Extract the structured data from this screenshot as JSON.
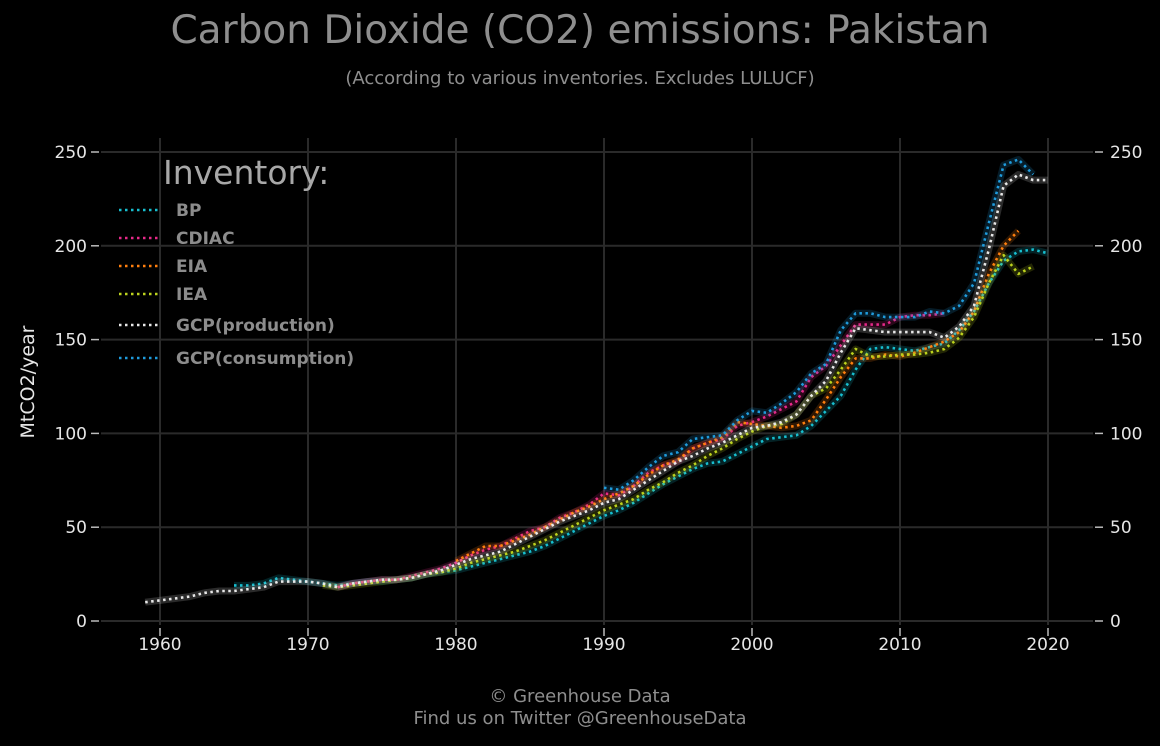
{
  "title": "Carbon Dioxide (CO2) emissions: Pakistan",
  "subtitle": "(According to various inventories. Excludes LULUCF)",
  "footer": {
    "line1": "© Greenhouse Data",
    "line2": "Find us on Twitter @GreenhouseData"
  },
  "chart_data": {
    "type": "line",
    "title": "Carbon Dioxide (CO2) emissions: Pakistan",
    "subtitle": "(According to various inventories. Excludes LULUCF)",
    "xlabel": "",
    "ylabel": "MtCO2/year",
    "xlim": [
      1956,
      2023
    ],
    "ylim": [
      0,
      260
    ],
    "x_ticks": [
      1960,
      1970,
      1980,
      1990,
      2000,
      2010,
      2020
    ],
    "y_ticks": [
      0,
      50,
      100,
      150,
      200,
      250
    ],
    "grid": true,
    "legend_title": "Inventory:",
    "legend_position": "top-left",
    "series": [
      {
        "name": "BP",
        "color": "#17becf",
        "x": [
          1965,
          1966,
          1967,
          1968,
          1969,
          1970,
          1971,
          1972,
          1973,
          1974,
          1975,
          1976,
          1977,
          1978,
          1979,
          1980,
          1981,
          1982,
          1983,
          1984,
          1985,
          1986,
          1987,
          1988,
          1989,
          1990,
          1991,
          1992,
          1993,
          1994,
          1995,
          1996,
          1997,
          1998,
          1999,
          2000,
          2001,
          2002,
          2003,
          2004,
          2005,
          2006,
          2007,
          2008,
          2009,
          2010,
          2011,
          2012,
          2013,
          2014,
          2015,
          2016,
          2017,
          2018,
          2019,
          2020
        ],
        "y": [
          19,
          19,
          20,
          23,
          22,
          21,
          20,
          19,
          20,
          21,
          21,
          22,
          23,
          25,
          26,
          27,
          29,
          31,
          33,
          35,
          37,
          40,
          44,
          48,
          52,
          56,
          59,
          63,
          68,
          73,
          77,
          81,
          84,
          85,
          89,
          93,
          97,
          98,
          99,
          104,
          112,
          120,
          134,
          145,
          146,
          145,
          144,
          146,
          148,
          155,
          165,
          180,
          192,
          197,
          198,
          196
        ]
      },
      {
        "name": "CDIAC",
        "color": "#e7298a",
        "x": [
          1972,
          1973,
          1974,
          1975,
          1976,
          1977,
          1978,
          1979,
          1980,
          1981,
          1982,
          1983,
          1984,
          1985,
          1986,
          1987,
          1988,
          1989,
          1990,
          1991,
          1992,
          1993,
          1994,
          1995,
          1996,
          1997,
          1998,
          1999,
          2000,
          2001,
          2002,
          2003,
          2004,
          2005,
          2006,
          2007,
          2008,
          2009,
          2010,
          2011,
          2012,
          2013
        ],
        "y": [
          18,
          20,
          21,
          22,
          22,
          24,
          26,
          28,
          31,
          35,
          38,
          40,
          44,
          48,
          50,
          55,
          58,
          62,
          68,
          67,
          72,
          79,
          83,
          85,
          92,
          95,
          97,
          104,
          106,
          109,
          113,
          117,
          130,
          136,
          147,
          158,
          158,
          158,
          162,
          163,
          163,
          164
        ]
      },
      {
        "name": "EIA",
        "color": "#ff7f0e",
        "x": [
          1980,
          1981,
          1982,
          1983,
          1984,
          1985,
          1986,
          1987,
          1988,
          1989,
          1990,
          1991,
          1992,
          1993,
          1994,
          1995,
          1996,
          1997,
          1998,
          1999,
          2000,
          2001,
          2002,
          2003,
          2004,
          2005,
          2006,
          2007,
          2008,
          2009,
          2010,
          2011,
          2012,
          2013,
          2014,
          2015,
          2016,
          2017,
          2018
        ],
        "y": [
          32,
          36,
          40,
          40,
          43,
          46,
          50,
          54,
          58,
          61,
          65,
          68,
          72,
          78,
          83,
          86,
          92,
          95,
          98,
          106,
          105,
          104,
          103,
          104,
          107,
          118,
          130,
          140,
          140,
          142,
          141,
          143,
          146,
          149,
          154,
          165,
          185,
          200,
          208
        ]
      },
      {
        "name": "IEA",
        "color": "#bcd21e",
        "x": [
          1971,
          1972,
          1973,
          1974,
          1975,
          1976,
          1977,
          1978,
          1979,
          1980,
          1981,
          1982,
          1983,
          1984,
          1985,
          1986,
          1987,
          1988,
          1989,
          1990,
          1991,
          1992,
          1993,
          1994,
          1995,
          1996,
          1997,
          1998,
          1999,
          2000,
          2001,
          2002,
          2003,
          2004,
          2005,
          2006,
          2007,
          2008,
          2009,
          2010,
          2011,
          2012,
          2013,
          2014,
          2015,
          2016,
          2017,
          2018,
          2019
        ],
        "y": [
          19,
          18,
          19,
          20,
          21,
          22,
          23,
          25,
          26,
          28,
          31,
          33,
          35,
          37,
          40,
          43,
          47,
          51,
          55,
          59,
          62,
          65,
          70,
          74,
          79,
          83,
          88,
          92,
          97,
          101,
          104,
          105,
          110,
          120,
          124,
          134,
          145,
          141,
          141,
          142,
          142,
          143,
          145,
          151,
          162,
          180,
          195,
          185,
          189
        ]
      },
      {
        "name": "GCP(production)",
        "color": "#e8e8e8",
        "x": [
          1959,
          1960,
          1961,
          1962,
          1963,
          1964,
          1965,
          1966,
          1967,
          1968,
          1969,
          1970,
          1971,
          1972,
          1973,
          1974,
          1975,
          1976,
          1977,
          1978,
          1979,
          1980,
          1981,
          1982,
          1983,
          1984,
          1985,
          1986,
          1987,
          1988,
          1989,
          1990,
          1991,
          1992,
          1993,
          1994,
          1995,
          1996,
          1997,
          1998,
          1999,
          2000,
          2001,
          2002,
          2003,
          2004,
          2005,
          2006,
          2007,
          2008,
          2009,
          2010,
          2011,
          2012,
          2013,
          2014,
          2015,
          2016,
          2017,
          2018,
          2019,
          2020
        ],
        "y": [
          10,
          11,
          12,
          13,
          15,
          16,
          16,
          17,
          18,
          21,
          21,
          21,
          20,
          18,
          20,
          21,
          22,
          22,
          23,
          25,
          27,
          30,
          33,
          35,
          37,
          41,
          45,
          49,
          53,
          56,
          59,
          63,
          65,
          70,
          75,
          80,
          85,
          88,
          92,
          95,
          99,
          103,
          104,
          106,
          110,
          120,
          128,
          143,
          156,
          155,
          154,
          154,
          154,
          154,
          151,
          157,
          168,
          198,
          232,
          238,
          235,
          235
        ]
      },
      {
        "name": "GCP(consumption)",
        "color": "#1f9bdc",
        "x": [
          1990,
          1991,
          1992,
          1993,
          1994,
          1995,
          1996,
          1997,
          1998,
          1999,
          2000,
          2001,
          2002,
          2003,
          2004,
          2005,
          2006,
          2007,
          2008,
          2009,
          2010,
          2011,
          2012,
          2013,
          2014,
          2015,
          2016,
          2017,
          2018,
          2019
        ],
        "y": [
          71,
          70,
          75,
          82,
          88,
          90,
          97,
          98,
          99,
          107,
          112,
          111,
          116,
          122,
          132,
          137,
          155,
          164,
          164,
          162,
          162,
          162,
          165,
          164,
          168,
          180,
          212,
          243,
          246,
          238
        ]
      }
    ]
  }
}
